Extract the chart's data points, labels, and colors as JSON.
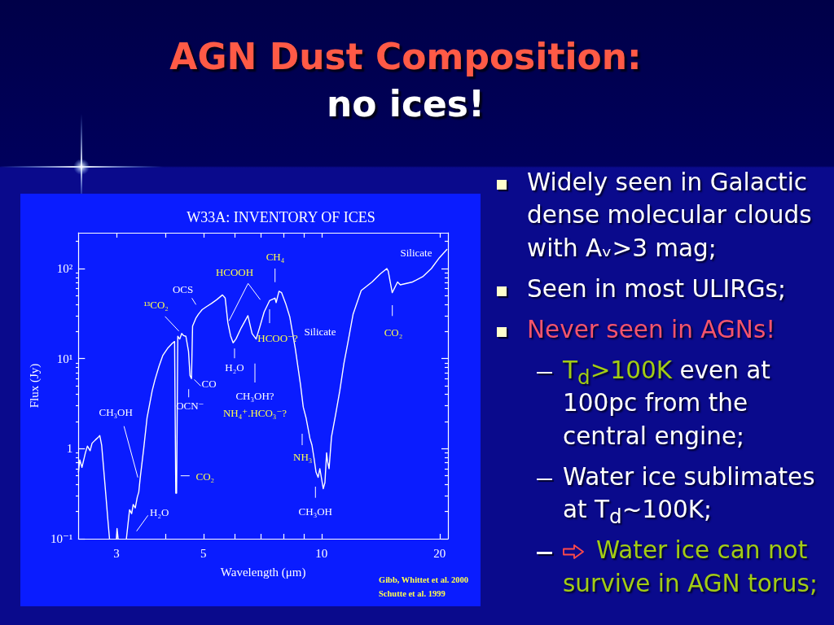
{
  "chart_data": {
    "type": "line",
    "title": "W33A: INVENTORY OF ICES",
    "xlabel": "Wavelength (μm)",
    "ylabel": "Flux (Jy)",
    "log": "xy",
    "color": "#ffffff",
    "x": [
      2.4,
      2.42,
      2.45,
      2.5,
      2.53,
      2.57,
      2.6,
      2.65,
      2.7,
      2.72,
      2.75,
      2.78,
      2.82,
      2.85,
      2.88,
      2.92,
      3.0,
      3.01,
      3.03,
      3.1,
      3.18,
      3.24,
      3.28,
      3.31,
      3.35,
      3.39,
      3.42,
      3.45,
      3.52,
      3.59,
      3.7,
      3.76,
      3.85,
      3.94,
      4.05,
      4.17,
      4.22,
      4.25,
      4.27,
      4.3,
      4.35,
      4.4,
      4.45,
      4.51,
      4.58,
      4.62,
      4.66,
      4.69,
      4.78,
      4.85,
      4.96,
      5.1,
      5.24,
      5.4,
      5.59,
      5.68,
      5.77,
      5.86,
      5.95,
      6.05,
      6.24,
      6.49,
      6.65,
      6.81,
      6.95,
      7.14,
      7.37,
      7.61,
      7.66,
      7.79,
      7.91,
      8.1,
      8.3,
      8.57,
      8.84,
      8.98,
      9.13,
      9.34,
      9.45,
      9.57,
      9.68,
      9.8,
      9.9,
      10.1,
      10.2,
      10.3,
      10.36,
      10.45,
      10.6,
      10.86,
      11.13,
      11.4,
      11.67,
      12.03,
      12.62,
      13.45,
      14.1,
      14.67,
      14.79,
      15.14,
      15.62,
      15.88,
      17.06,
      18.16,
      19.05,
      19.97,
      20.87
    ],
    "values": [
      0.55,
      0.75,
      0.62,
      0.9,
      1.07,
      0.95,
      1.15,
      1.25,
      1.35,
      1.4,
      1.1,
      0.63,
      0.3,
      0.17,
      0.1,
      null,
      0.1,
      0.13,
      0.1,
      null,
      0.1,
      0.21,
      0.19,
      0.24,
      0.22,
      0.29,
      0.33,
      0.48,
      1.0,
      2.2,
      4.4,
      5.8,
      8.2,
      10.9,
      13,
      14.9,
      15.5,
      0.32,
      0.32,
      17.7,
      16.5,
      19,
      18,
      17.7,
      12,
      6.5,
      6.0,
      23,
      28,
      31,
      35,
      38,
      41,
      45,
      51,
      47,
      25,
      18,
      15,
      16.5,
      22,
      30,
      19,
      16.5,
      22,
      33,
      44,
      47,
      42,
      56,
      54,
      41,
      29,
      13,
      5.1,
      2.9,
      2.2,
      1.3,
      1.1,
      0.78,
      0.55,
      0.48,
      0.6,
      0.36,
      0.42,
      0.9,
      0.72,
      0.6,
      1.35,
      2.4,
      4.4,
      8.8,
      15,
      31,
      57,
      71,
      87,
      100,
      94,
      54,
      71,
      66,
      71,
      82,
      100,
      132,
      163
    ],
    "xlim": [
      2.4,
      21
    ],
    "ylim": [
      0.1,
      250
    ],
    "xticks": [
      3,
      {
        "value": 4,
        "label": null
      },
      5,
      {
        "value": 6,
        "label": null
      },
      {
        "value": 7,
        "label": null
      },
      {
        "value": 8,
        "label": null
      },
      {
        "value": 9,
        "label": null
      },
      10,
      20
    ],
    "yticks": [
      {
        "value": 0.1,
        "label": "10⁻¹"
      },
      {
        "value": 0.2,
        "label": null
      },
      {
        "value": 0.3,
        "label": null
      },
      {
        "value": 0.4,
        "label": null
      },
      {
        "value": 0.5,
        "label": null
      },
      {
        "value": 0.6,
        "label": null
      },
      {
        "value": 0.7,
        "label": null
      },
      {
        "value": 0.8,
        "label": null
      },
      {
        "value": 0.9,
        "label": null
      },
      1,
      {
        "value": 2,
        "label": null
      },
      {
        "value": 3,
        "label": null
      },
      {
        "value": 4,
        "label": null
      },
      {
        "value": 5,
        "label": null
      },
      {
        "value": 6,
        "label": null
      },
      {
        "value": 7,
        "label": null
      },
      {
        "value": 8,
        "label": null
      },
      {
        "value": 9,
        "label": null
      },
      {
        "value": 10,
        "label": "10¹"
      },
      {
        "value": 20,
        "label": null
      },
      {
        "value": 30,
        "label": null
      },
      {
        "value": 40,
        "label": null
      },
      {
        "value": 50,
        "label": null
      },
      {
        "value": 60,
        "label": null
      },
      {
        "value": 70,
        "label": null
      },
      {
        "value": 80,
        "label": null
      },
      {
        "value": 90,
        "label": null
      },
      {
        "value": 100,
        "label": "10²"
      },
      {
        "value": 200,
        "label": null
      }
    ],
    "annotations": [
      {
        "text": "¹³CO₂",
        "x": 4.39,
        "y": 19
      },
      {
        "text": "OCS",
        "x": 4.9,
        "y": 33
      },
      {
        "text": "HCOOH",
        "x": 5.77,
        "y": 25
      },
      "CH₄",
      "Silicate",
      {
        "text": "HCOO⁻?",
        "x": 7.3,
        "y": 40
      },
      {
        "text": "H₂O",
        "x": 6.0,
        "y": 15
      },
      "CH₃OH?",
      "NH₄⁺.HCO₃⁻?",
      {
        "text": "CO",
        "x": 4.67,
        "y": 6.5
      },
      {
        "text": "OCN⁻",
        "x": 4.62,
        "y": 6
      },
      {
        "text": "CH₃OH",
        "x": 3.45,
        "y": 0.45
      },
      {
        "text": "CO₂",
        "x": 4.27,
        "y": 0.5
      },
      "H₂O",
      "NH₃",
      "CH₃OH",
      "Silicate",
      "CO₂",
      "Gibb, Whittet et al. 2000",
      "Schutte et al. 1999",
      "AGN Dust Composition:",
      "no ices!",
      "Widely seen in Galactic dense molecular clouds with Aᵥ>3 mag;",
      "Seen in most ULIRGs;",
      "Never seen in AGNs!",
      "T$_{d}$>100K",
      "even at",
      "100pc from the",
      "central engine;",
      "Water ice sublimates at T$_{d}$~100K;",
      "Water ice can not survive in AGN torus;"
    ]
  }
}
